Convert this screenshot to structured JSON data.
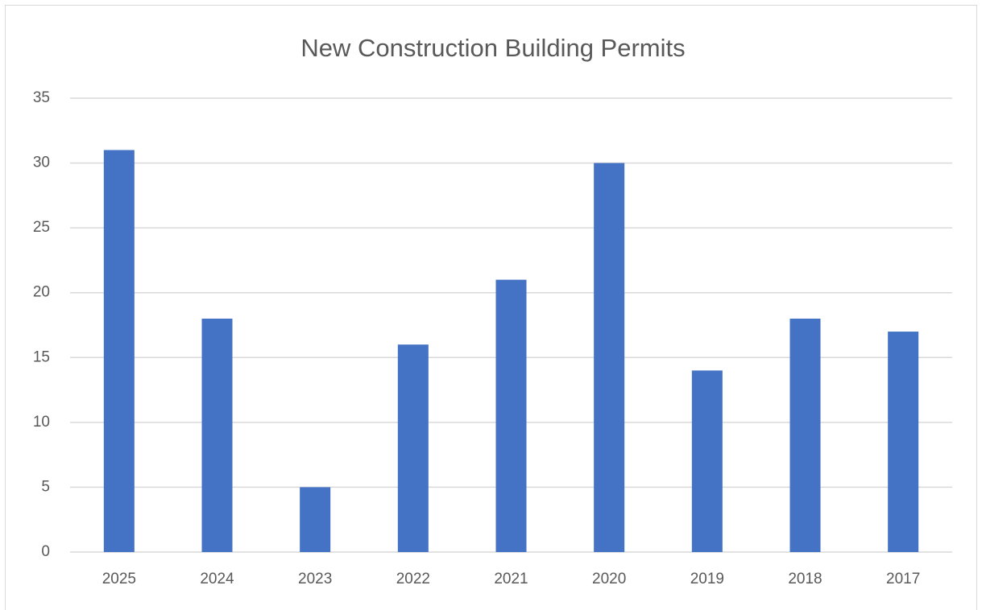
{
  "chart_data": {
    "type": "bar",
    "title": "New Construction Building Permits",
    "categories": [
      "2025",
      "2024",
      "2023",
      "2022",
      "2021",
      "2020",
      "2019",
      "2018",
      "2017"
    ],
    "values": [
      31,
      18,
      5,
      16,
      21,
      30,
      14,
      18,
      17
    ],
    "color": "#4472c4",
    "ylim": [
      0,
      35
    ],
    "yticks": [
      0,
      5,
      10,
      15,
      20,
      25,
      30,
      35
    ],
    "grid": true
  }
}
